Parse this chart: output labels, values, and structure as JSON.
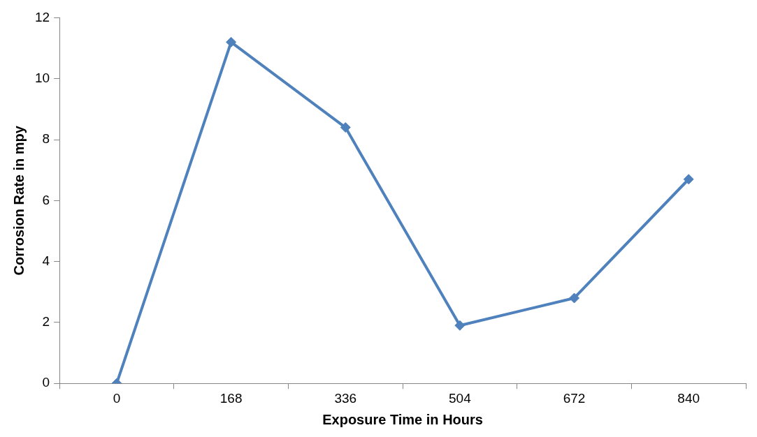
{
  "chart_data": {
    "type": "line",
    "xlabel": "Exposure Time in Hours",
    "ylabel": "Corrosion Rate in mpy",
    "categories": [
      "0",
      "168",
      "336",
      "504",
      "672",
      "840"
    ],
    "series": [
      {
        "color": "#4f81bd",
        "values": [
          0,
          11.2,
          8.4,
          1.9,
          2.8,
          6.7
        ]
      }
    ],
    "ylim": [
      0,
      12
    ],
    "yticks": [
      0,
      2,
      4,
      6,
      8,
      10,
      12
    ],
    "grid": false,
    "legend": false,
    "marker": "diamond",
    "line_style": "solid"
  }
}
